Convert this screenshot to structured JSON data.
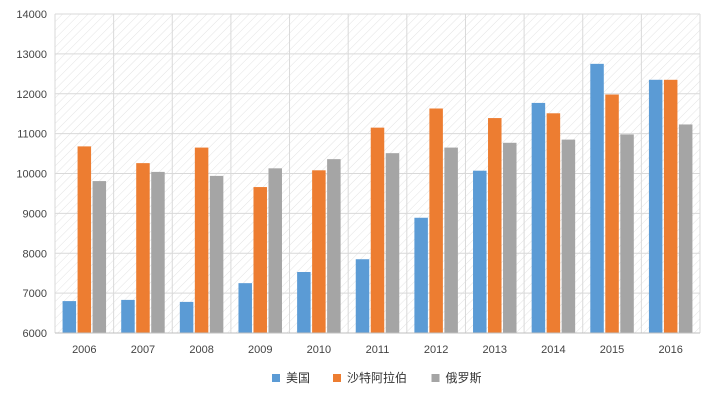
{
  "chart_data": {
    "type": "bar",
    "categories": [
      "2006",
      "2007",
      "2008",
      "2009",
      "2010",
      "2011",
      "2012",
      "2013",
      "2014",
      "2015",
      "2016"
    ],
    "series": [
      {
        "name": "美国",
        "color": "#5B9BD5",
        "values": [
          6800,
          6830,
          6780,
          7250,
          7530,
          7850,
          8890,
          10070,
          11770,
          12750,
          12350
        ]
      },
      {
        "name": "沙特阿拉伯",
        "color": "#ED7D31",
        "values": [
          10680,
          10260,
          10650,
          9660,
          10080,
          11150,
          11630,
          11390,
          11510,
          11980,
          12350
        ]
      },
      {
        "name": "俄罗斯",
        "color": "#A5A5A5",
        "values": [
          9810,
          10040,
          9940,
          10130,
          10360,
          10510,
          10650,
          10770,
          10850,
          10980,
          11230
        ]
      }
    ],
    "ylim": [
      6000,
      14000
    ],
    "yticks": [
      "6000",
      "7000",
      "8000",
      "9000",
      "10000",
      "11000",
      "12000",
      "13000",
      "14000"
    ],
    "grid": true,
    "legend_position": "bottom-center"
  }
}
